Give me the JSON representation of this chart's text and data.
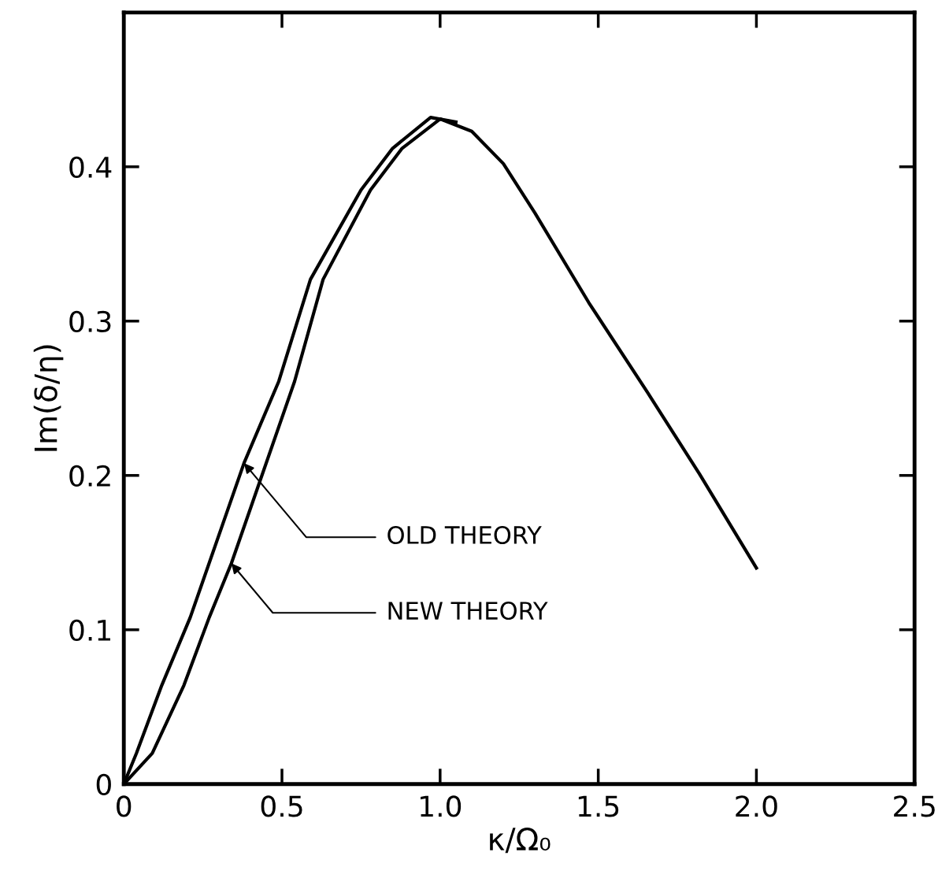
{
  "chart_data": {
    "type": "line",
    "xlabel": "κ/Ω₀",
    "ylabel": "Im(δ/η)",
    "xlim": [
      0,
      2.5
    ],
    "ylim": [
      0,
      0.5
    ],
    "xticks": [
      0,
      0.5,
      {
        "value": 1.0,
        "label": "1.0"
      },
      1.5,
      {
        "value": 2.0,
        "label": "2.0"
      },
      2.5
    ],
    "yticks": [
      0,
      0.1,
      0.2,
      0.3,
      0.4
    ],
    "grid": false,
    "legend": false,
    "marker": "none",
    "line_style": "solid",
    "series": [
      {
        "color": "#000000",
        "x": [
          0,
          0.04,
          0.12,
          0.21,
          0.38,
          0.49,
          0.59,
          0.75,
          0.85,
          0.97,
          1.05
        ],
        "values": [
          0,
          0.02,
          0.064,
          0.108,
          0.208,
          0.261,
          0.327,
          0.385,
          0.412,
          0.432,
          0.429
        ]
      },
      {
        "color": "#000000",
        "x": [
          0,
          0.09,
          0.19,
          0.27,
          0.34,
          0.54,
          0.63,
          0.78,
          0.88,
          1.0,
          1.1,
          1.2,
          1.3,
          1.47,
          1.655,
          1.82,
          2.0
        ],
        "values": [
          0,
          0.02,
          0.064,
          0.108,
          0.143,
          0.261,
          0.327,
          0.385,
          0.412,
          0.431,
          0.423,
          0.402,
          0.37,
          0.312,
          0.254,
          0.201,
          0.14
        ]
      }
    ],
    "annotations": [
      {
        "text": "OLD THEORY",
        "x": 0.38,
        "y": 0.208
      },
      {
        "text": "NEW THEORY",
        "x": 0.34,
        "y": 0.143
      }
    ]
  }
}
